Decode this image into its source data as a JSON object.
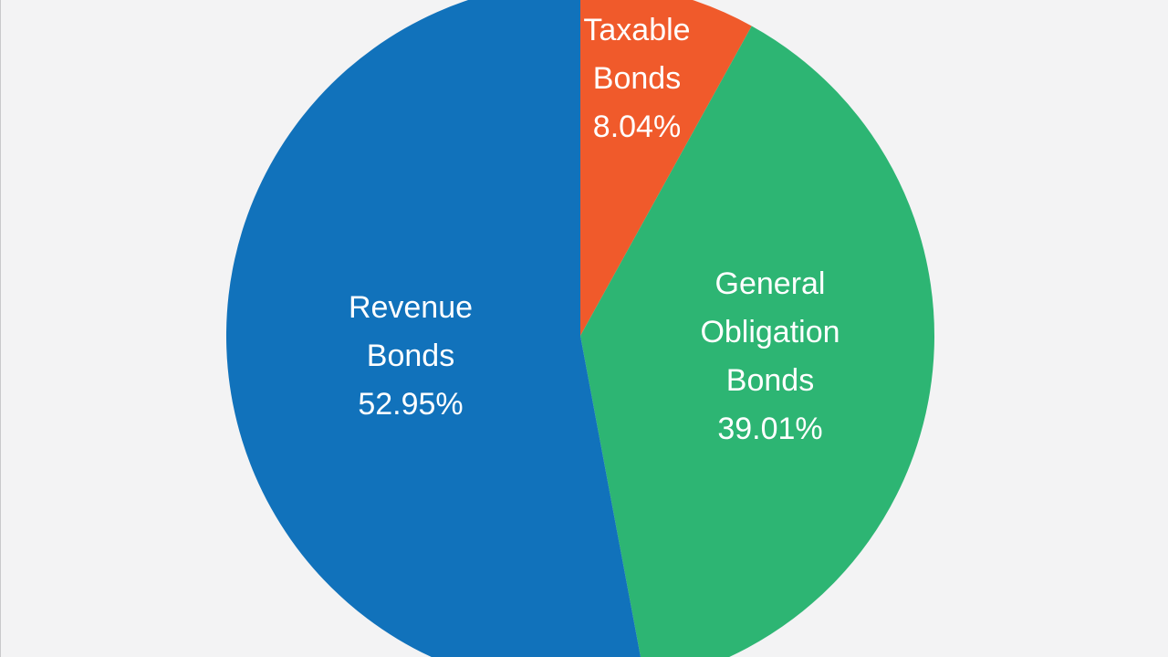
{
  "chart_data": {
    "type": "pie",
    "title": "",
    "slices": [
      {
        "label": [
          "Taxable",
          "Bonds"
        ],
        "value": 8.04,
        "value_label": "8.04%",
        "color": "#f05a2b"
      },
      {
        "label": [
          "General",
          "Obligation",
          "Bonds"
        ],
        "value": 39.01,
        "value_label": "39.01%",
        "color": "#2db573"
      },
      {
        "label": [
          "Revenue",
          "Bonds"
        ],
        "value": 52.95,
        "value_label": "52.95%",
        "color": "#1172bb"
      }
    ],
    "start_angle": "top (12 o'clock)",
    "direction": "clockwise",
    "legend": "none"
  },
  "colors": {
    "background": "#f3f3f4"
  }
}
